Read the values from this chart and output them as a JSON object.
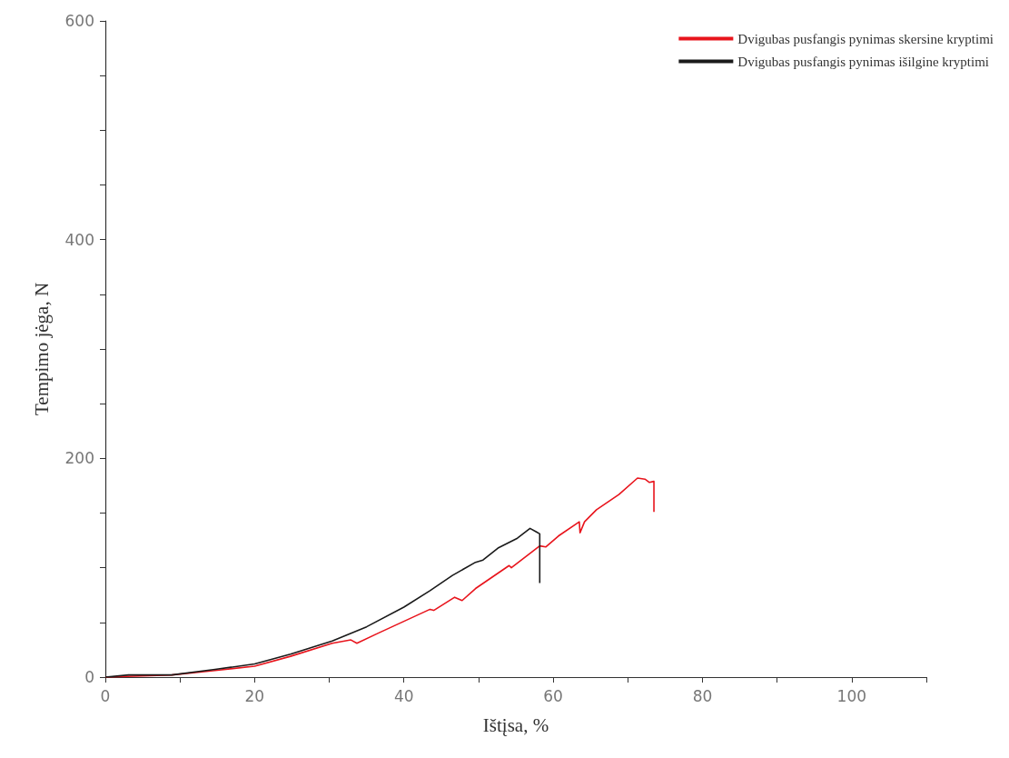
{
  "chart_data": {
    "type": "line",
    "xlabel": "Ištįsa, %",
    "ylabel": "Tempimo jėga, N",
    "xlim": [
      0,
      110
    ],
    "xticks": [
      0,
      {
        "value": 10,
        "label": null
      },
      20,
      {
        "value": 30,
        "label": null
      },
      40,
      {
        "value": 50,
        "label": null
      },
      60,
      {
        "value": 70,
        "label": null
      },
      80,
      {
        "value": 90,
        "label": null
      },
      100,
      {
        "value": 110,
        "label": null
      }
    ],
    "ylim": [
      0,
      600
    ],
    "yticks": [
      0,
      {
        "value": 50,
        "label": null
      },
      {
        "value": 100,
        "label": null
      },
      {
        "value": 150,
        "label": null
      },
      200,
      {
        "value": 250,
        "label": null
      },
      {
        "value": 300,
        "label": null
      },
      {
        "value": 350,
        "label": null
      },
      400,
      {
        "value": 450,
        "label": null
      },
      {
        "value": 500,
        "label": null
      },
      {
        "value": 550,
        "label": null
      },
      600
    ],
    "grid": false,
    "legend": "top right",
    "marker": "none",
    "line_style": "solid",
    "series": [
      {
        "name": "Dvigubas pusfangis pynimas skersine kryptimi",
        "color": "#e8141c",
        "x": [
          0,
          8.9,
          14.7,
          20,
          24.8,
          30.4,
          32.9,
          33.7,
          36.5,
          40,
          43.5,
          44,
          46.8,
          47.8,
          49.6,
          54.1,
          54.4,
          58.2,
          59,
          60.7,
          63.5,
          63.6,
          64.2,
          65.8,
          68.8,
          71.3,
          72.3,
          72.9,
          73.5,
          73.5
        ],
        "values": [
          0,
          2,
          6,
          10,
          19,
          31,
          34,
          31,
          40,
          51,
          62,
          61,
          73,
          70,
          81,
          102,
          100,
          120,
          119,
          129,
          142,
          132,
          142,
          153,
          167,
          182,
          181,
          178,
          179,
          151
        ]
      },
      {
        "name": "Dvigubas pusfangis pynimas išilgine kryptimi",
        "color": "#1a1a1a",
        "x": [
          0,
          3.1,
          8.9,
          14.7,
          20,
          24.8,
          30.4,
          35,
          40,
          43.5,
          46.5,
          49.6,
          50.6,
          52.6,
          55.2,
          56.9,
          57.7,
          58.2,
          58.2
        ],
        "values": [
          0,
          2,
          2,
          7,
          12,
          21,
          33,
          46,
          64,
          79,
          93,
          105,
          107,
          118,
          127,
          136,
          133,
          131,
          86
        ]
      }
    ]
  }
}
